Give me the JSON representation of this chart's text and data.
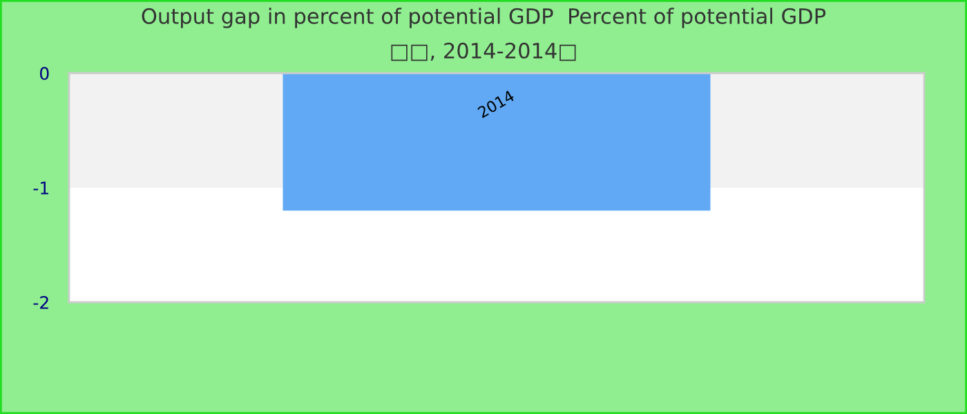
{
  "chart_data": {
    "type": "bar",
    "title": "Output gap in percent of potential GDP  Percent of potential GDP",
    "subtitle": "□□, 2014-2014□",
    "categories": [
      "2014"
    ],
    "series": [
      {
        "color": "#61a9f5",
        "values": [
          -1.2
        ]
      }
    ],
    "ylim": [
      -2,
      0
    ],
    "yticks": [
      -2,
      -1,
      0
    ],
    "bands": [
      {
        "axis": "y",
        "from": -1,
        "to": 0,
        "color": "#f2f2f2"
      }
    ],
    "grid": false,
    "legend": false
  }
}
